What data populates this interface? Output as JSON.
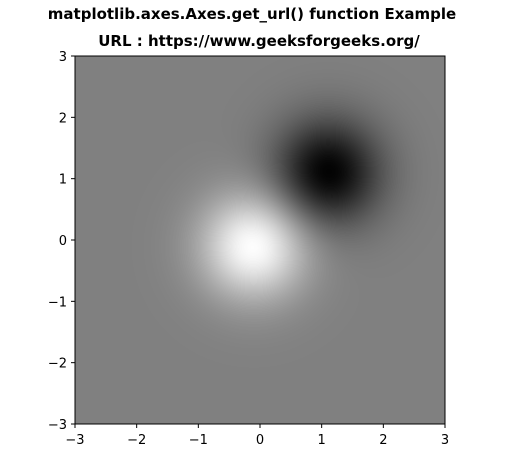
{
  "chart_data": {
    "type": "heatmap",
    "title": "matplotlib.axes.Axes.get_url() function Example",
    "subtitle": "URL : https://www.geeksforgeeks.org/",
    "xlabel": "",
    "ylabel": "",
    "xlim": [
      -3,
      3
    ],
    "ylim": [
      -3,
      3
    ],
    "x_ticks": [
      -3,
      -2,
      -1,
      0,
      1,
      2,
      3
    ],
    "y_ticks": [
      -3,
      -2,
      -1,
      0,
      1,
      2,
      3
    ],
    "x_tick_labels": [
      "−3",
      "−2",
      "−1",
      "0",
      "1",
      "2",
      "3"
    ],
    "y_tick_labels": [
      "−3",
      "−2",
      "−1",
      "0",
      "1",
      "2",
      "3"
    ],
    "colormap": "gray",
    "grid": false,
    "features": [
      {
        "kind": "maximum",
        "x": -0.1,
        "y": -0.1
      },
      {
        "kind": "minimum",
        "x": 1.1,
        "y": 1.1
      }
    ]
  }
}
